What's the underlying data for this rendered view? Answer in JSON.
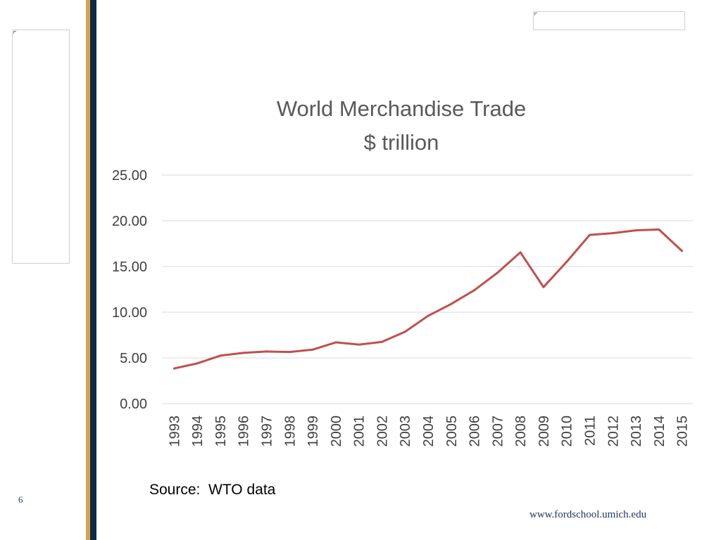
{
  "slide": {
    "tiny_header_text": "",
    "source_text": "Source:  WTO data",
    "page_number": "6",
    "footer_url": "www.fordschool.umich.edu",
    "colors": {
      "gold_stripe": "#d9a14b",
      "navy_stripe": "#0f2a47",
      "series": "#c0504d"
    }
  },
  "chart_data": {
    "type": "line",
    "title": [
      "World Merchandise Trade",
      "$ trillion"
    ],
    "xlabel": "",
    "ylabel": "",
    "ylim": [
      0,
      25
    ],
    "y_ticks": [
      "0.00",
      "5.00",
      "10.00",
      "15.00",
      "20.00",
      "25.00"
    ],
    "grid": true,
    "legend": "none",
    "categories": [
      "1993",
      "1994",
      "1995",
      "1996",
      "1997",
      "1998",
      "1999",
      "2000",
      "2001",
      "2002",
      "2003",
      "2004",
      "2005",
      "2006",
      "2007",
      "2008",
      "2009",
      "2010",
      "2011",
      "2012",
      "2013",
      "2014",
      "2015"
    ],
    "series": [
      {
        "name": "World Merchandise Trade",
        "values": [
          3.85,
          4.4,
          5.25,
          5.55,
          5.7,
          5.65,
          5.9,
          6.7,
          6.45,
          6.75,
          7.85,
          9.6,
          10.9,
          12.4,
          14.3,
          16.55,
          12.75,
          15.5,
          18.45,
          18.65,
          18.95,
          19.05,
          16.7
        ]
      }
    ]
  }
}
